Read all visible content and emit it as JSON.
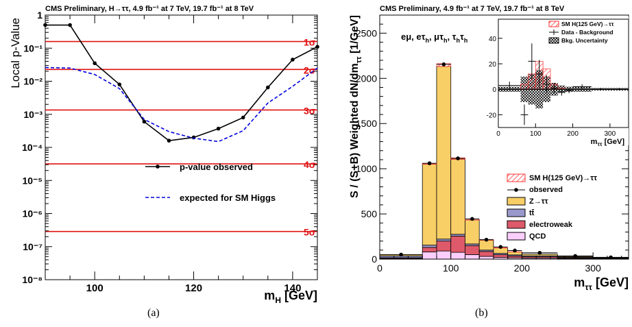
{
  "chart_data": [
    {
      "type": "line",
      "title": "CMS Preliminary, H→ττ, 4.9 fb⁻¹ at 7 TeV, 19.7 fb⁻¹ at 8 TeV",
      "xlabel": "m_H [GeV]",
      "ylabel": "Local p-Value",
      "log_y": true,
      "xlim": [
        90,
        145
      ],
      "ylim": [
        1e-08,
        1
      ],
      "x_ticks": [
        100,
        120,
        140
      ],
      "y_ticks": [
        {
          "value": 1,
          "label": "1"
        },
        {
          "value": 0.1,
          "label": "10⁻¹"
        },
        {
          "value": 0.01,
          "label": "10⁻²"
        },
        {
          "value": 0.001,
          "label": "10⁻³"
        },
        {
          "value": 0.0001,
          "label": "10⁻⁴"
        },
        {
          "value": 1e-05,
          "label": "10⁻⁵"
        },
        {
          "value": 1e-06,
          "label": "10⁻⁶"
        },
        {
          "value": 1e-07,
          "label": "10⁻⁷"
        },
        {
          "value": 1e-08,
          "label": "10⁻⁸"
        }
      ],
      "sigma_lines": [
        {
          "p": 0.1587,
          "label": "1σ"
        },
        {
          "p": 0.02275,
          "label": "2σ"
        },
        {
          "p": 0.00135,
          "label": "3σ"
        },
        {
          "p": 3.17e-05,
          "label": "4σ"
        },
        {
          "p": 2.87e-07,
          "label": "5σ"
        }
      ],
      "series": [
        {
          "name": "p-value observed",
          "style": "solid-markers",
          "color": "#000000",
          "x": [
            90,
            95,
            100,
            105,
            110,
            115,
            120,
            125,
            130,
            135,
            140,
            145
          ],
          "y": [
            0.5,
            0.5,
            0.035,
            0.008,
            0.0006,
            0.00016,
            0.0002,
            0.00037,
            0.0008,
            0.0065,
            0.045,
            0.11
          ]
        },
        {
          "name": "expected for SM Higgs",
          "style": "dashed",
          "color": "#0000dd",
          "x": [
            90,
            95,
            100,
            105,
            110,
            115,
            120,
            125,
            130,
            135,
            140,
            145
          ],
          "y": [
            0.026,
            0.025,
            0.016,
            0.006,
            0.0007,
            0.0003,
            0.00019,
            0.00015,
            0.00032,
            0.0022,
            0.007,
            0.025
          ]
        }
      ],
      "legend_position": "lower-right",
      "caption": "(a)"
    },
    {
      "type": "bar",
      "stacked": true,
      "title": "CMS Preliminary,  4.9 fb⁻¹ at 7 TeV, 19.7 fb⁻¹ at 8 TeV",
      "xlabel": "m_ττ  [GeV]",
      "ylabel": "S / (S+B) Weighted dN/dm_ττ  [1/GeV]",
      "channels_label": "eμ, eτh, μτh, τhτh",
      "xlim": [
        0,
        350
      ],
      "ylim": [
        0,
        2700
      ],
      "x_ticks": [
        0,
        100,
        200,
        300
      ],
      "y_ticks": [
        0,
        500,
        1000,
        1500,
        2000,
        2500
      ],
      "bin_edges": [
        0,
        60,
        80,
        100,
        120,
        140,
        160,
        180,
        200,
        250,
        300,
        350
      ],
      "stack": [
        {
          "name": "QCD",
          "color": "#fccefc",
          "values": [
            8,
            80,
            90,
            75,
            50,
            30,
            20,
            15,
            12,
            8,
            4
          ]
        },
        {
          "name": "electroweak",
          "color": "#de5a6a",
          "values": [
            8,
            50,
            110,
            180,
            100,
            55,
            30,
            20,
            15,
            8,
            4
          ]
        },
        {
          "name": "tt̄",
          "color": "#9999cc",
          "values": [
            20,
            25,
            22,
            20,
            18,
            15,
            14,
            12,
            10,
            8,
            5
          ]
        },
        {
          "name": "Z→ττ",
          "color": "#f8cf67",
          "values": [
            14,
            895,
            1910,
            830,
            265,
            110,
            60,
            33,
            18,
            8,
            4
          ]
        }
      ],
      "signal": {
        "name": "SM H(125 GeV)→ττ",
        "color": "#ff3333",
        "values": [
          0,
          10,
          30,
          15,
          10,
          5,
          2,
          1,
          0,
          0,
          0
        ]
      },
      "observed": {
        "name": "observed",
        "x": [
          30,
          70,
          90,
          110,
          130,
          150,
          170,
          190,
          225,
          275,
          325
        ],
        "y": [
          50,
          1060,
          2155,
          1115,
          445,
          215,
          135,
          95,
          70,
          35,
          20
        ]
      },
      "legend": [
        "SM H(125 GeV)→ττ",
        "observed",
        "Z→ττ",
        "tt̄",
        "electroweak",
        "QCD"
      ],
      "legend_position": "right",
      "inset": {
        "xlabel": "m_ττ [GeV]",
        "xlim": [
          0,
          350
        ],
        "ylim": [
          -30,
          55
        ],
        "x_ticks": [
          0,
          100,
          200,
          300
        ],
        "y_ticks": [
          -20,
          0,
          20,
          40
        ],
        "legend": [
          "SM H(125 GeV)→ττ",
          "Data - Background",
          "Bkg. Uncertainty"
        ],
        "signal": [
          0,
          4,
          12,
          22,
          16,
          4,
          1,
          0,
          0,
          0,
          0
        ],
        "uncertainty": [
          2,
          10,
          12,
          15,
          10,
          5,
          3,
          2,
          2,
          1,
          1
        ],
        "data_minus_background": [
          3,
          -20,
          22,
          12,
          4,
          1,
          -2,
          -1,
          2,
          0,
          0
        ],
        "errors": [
          3,
          8,
          14,
          11,
          7,
          4,
          3,
          2,
          2,
          1,
          1
        ]
      },
      "caption": "(b)"
    }
  ]
}
